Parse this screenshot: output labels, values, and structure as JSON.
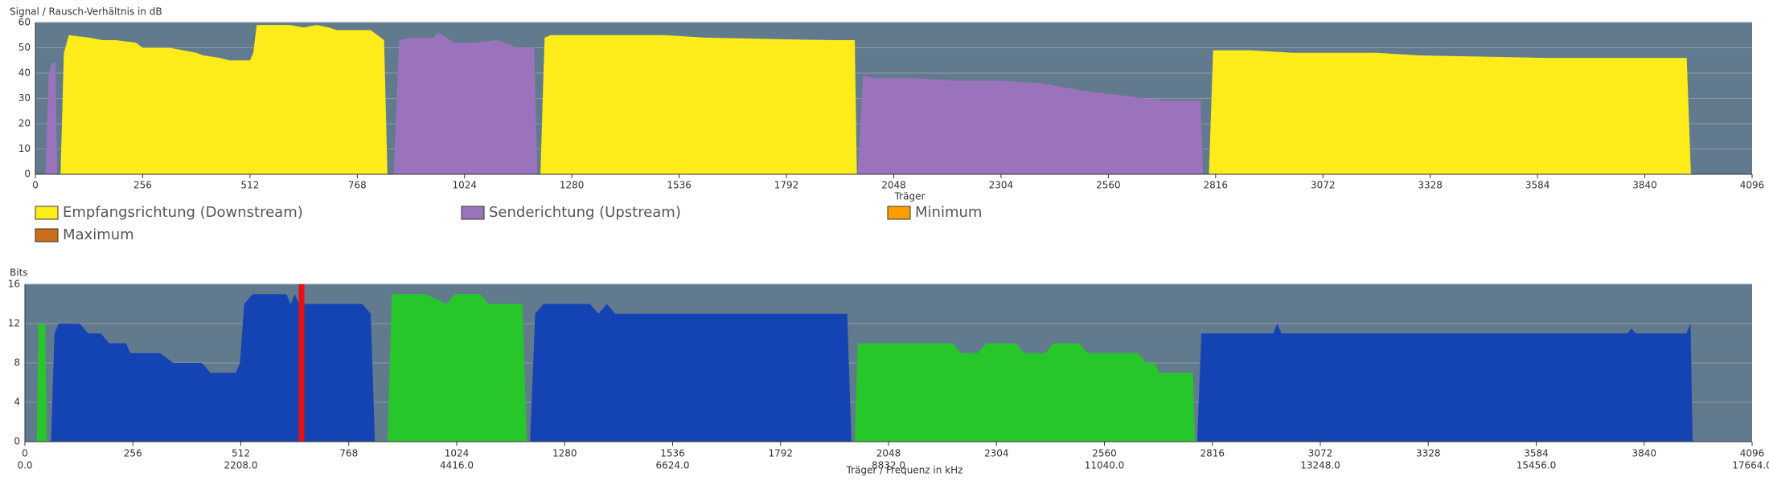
{
  "chart_data": [
    {
      "type": "area",
      "title": "Signal / Rausch-Verhältnis in dB",
      "x_label": "Träger",
      "xlim": [
        0,
        4096
      ],
      "xticks": [
        0,
        256,
        512,
        768,
        1024,
        1280,
        1536,
        1792,
        2048,
        2304,
        2560,
        2816,
        3072,
        3328,
        3584,
        3840,
        4096
      ],
      "ylim": [
        0,
        60
      ],
      "yticks": [
        0,
        10,
        20,
        30,
        40,
        50,
        60
      ],
      "grid": true,
      "background": "#627a8e",
      "series": [
        {
          "name": "Empfangsrichtung (Downstream)",
          "color": "#ffec1a",
          "x": [
            60,
            68,
            80,
            128,
            160,
            192,
            240,
            256,
            320,
            352,
            384,
            400,
            440,
            464,
            512,
            520,
            528,
            608,
            640,
            672,
            700,
            720,
            800,
            832,
            840,
            null,
            1205,
            1215,
            1230,
            1500,
            1600,
            1900,
            1955,
            1960,
            null,
            2800,
            2810,
            2900,
            3000,
            3200,
            3300,
            3600,
            3940,
            3950
          ],
          "values": [
            0,
            48,
            55,
            54,
            53,
            53,
            52,
            50,
            50,
            49,
            48,
            47,
            46,
            45,
            45,
            48,
            59,
            59,
            58,
            59,
            58,
            57,
            57,
            53,
            0,
            null,
            0,
            54,
            55,
            55,
            54,
            53,
            53,
            0,
            null,
            0,
            49,
            49,
            48,
            48,
            47,
            46,
            46,
            0
          ]
        },
        {
          "name": "Senderichtung (Upstream)",
          "color": "#9b73bd",
          "x": [
            24,
            32,
            40,
            48,
            52,
            null,
            855,
            868,
            900,
            950,
            960,
            1000,
            1050,
            1100,
            1150,
            1190,
            1198,
            null,
            1962,
            1975,
            2000,
            2100,
            2200,
            2300,
            2400,
            2500,
            2600,
            2700,
            2780,
            2786
          ],
          "values": [
            0,
            40,
            44,
            44,
            0,
            null,
            0,
            53,
            54,
            54,
            56,
            52,
            52,
            53,
            50,
            50,
            0,
            null,
            0,
            39,
            38,
            38,
            37,
            37,
            36,
            33,
            31,
            29,
            29,
            0
          ]
        },
        {
          "name": "Minimum",
          "color": "#ff9c00",
          "x": [],
          "values": []
        },
        {
          "name": "Maximum",
          "color": "#c96e1a",
          "x": [],
          "values": []
        }
      ]
    },
    {
      "type": "area",
      "title": "Bits",
      "x_label": "Träger / Frequenz in kHz",
      "xlim": [
        0,
        4096
      ],
      "xticks": [
        0,
        256,
        512,
        768,
        1024,
        1280,
        1536,
        1792,
        2048,
        2304,
        2560,
        2816,
        3072,
        3328,
        3584,
        3840,
        4096
      ],
      "x2lim": [
        0,
        17664
      ],
      "x2ticks": [
        {
          "value": 0,
          "label": "0.0"
        },
        {
          "value": 2208,
          "label": "2208.0"
        },
        {
          "value": 4416,
          "label": "4416.0"
        },
        {
          "value": 6624,
          "label": "6624.0"
        },
        {
          "value": 8832,
          "label": "8832.0"
        },
        {
          "value": 11040,
          "label": "11040.0"
        },
        {
          "value": 13248,
          "label": "13248.0"
        },
        {
          "value": 15456,
          "label": "15456.0"
        },
        {
          "value": 17664,
          "label": "17664.0"
        }
      ],
      "ylim": [
        0,
        16
      ],
      "yticks": [
        0,
        4,
        8,
        12,
        16
      ],
      "grid": true,
      "background": "#627a8e",
      "pilot": {
        "x": 656,
        "color": "#e81010"
      },
      "series": [
        {
          "name": "Senderichtung (Upstream)",
          "color": "#27c62a",
          "x": [
            28,
            32,
            48,
            52,
            null,
            860,
            870,
            950,
            1000,
            1020,
            1080,
            1100,
            1180,
            1190,
            null,
            1968,
            1975,
            2020,
            2200,
            2220,
            2260,
            2280,
            2350,
            2370,
            2420,
            2440,
            2500,
            2520,
            2640,
            2660,
            2680,
            2690,
            2770,
            2775
          ],
          "values": [
            0,
            12,
            12,
            0,
            null,
            0,
            15,
            15,
            14,
            15,
            15,
            14,
            14,
            0,
            null,
            0,
            10,
            10,
            10,
            9,
            9,
            10,
            10,
            9,
            9,
            10,
            10,
            9,
            9,
            8,
            8,
            7,
            7,
            0
          ]
        },
        {
          "name": "Empfangsrichtung (Downstream)",
          "color": "#1444b4",
          "x": [
            62,
            70,
            80,
            130,
            150,
            180,
            200,
            240,
            250,
            320,
            352,
            420,
            440,
            500,
            510,
            520,
            540,
            620,
            630,
            640,
            650,
            680,
            800,
            820,
            830,
            null,
            1198,
            1210,
            1230,
            1340,
            1360,
            1380,
            1400,
            1450,
            1470,
            1950,
            1960,
            null,
            2780,
            2790,
            2960,
            2970,
            2980,
            3800,
            3810,
            3820,
            3940,
            3950,
            3955
          ],
          "values": [
            0,
            11,
            12,
            12,
            11,
            11,
            10,
            10,
            9,
            9,
            8,
            8,
            7,
            7,
            8,
            14,
            15,
            15,
            14,
            15,
            14,
            14,
            14,
            13,
            0,
            null,
            0,
            13,
            14,
            14,
            13,
            14,
            13,
            13,
            13,
            13,
            0,
            null,
            0,
            11,
            11,
            12,
            11,
            11,
            11.5,
            11,
            11,
            12,
            0
          ]
        }
      ]
    }
  ]
}
